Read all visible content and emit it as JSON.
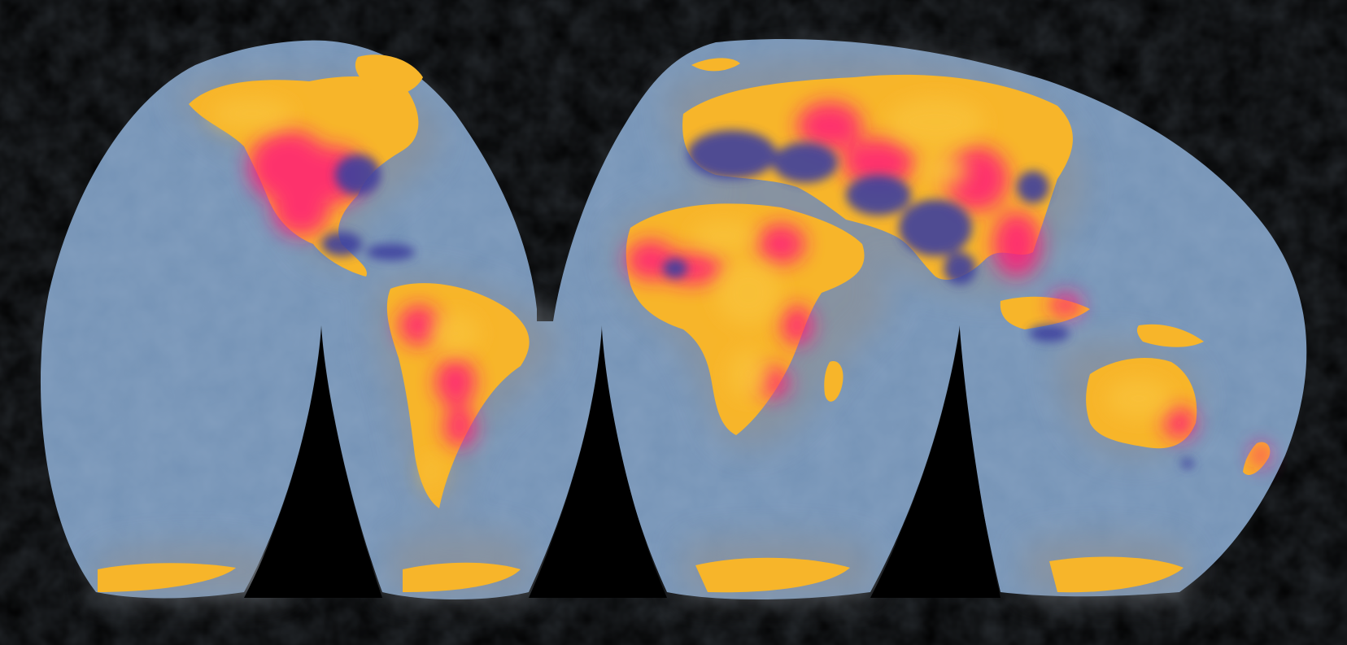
{
  "map": {
    "projection": "interrupted-goode-homolosine",
    "background_color": "#000000",
    "ocean_color": "#7593b6",
    "coast_halo_color": "#8b9199",
    "palette": {
      "low": "#3c3f9e",
      "mid": "#ff1e78",
      "high": "#f7b52a"
    },
    "regions": [
      {
        "name": "north-america"
      },
      {
        "name": "south-america"
      },
      {
        "name": "africa"
      },
      {
        "name": "eurasia"
      },
      {
        "name": "australia"
      },
      {
        "name": "antarctica"
      }
    ]
  }
}
